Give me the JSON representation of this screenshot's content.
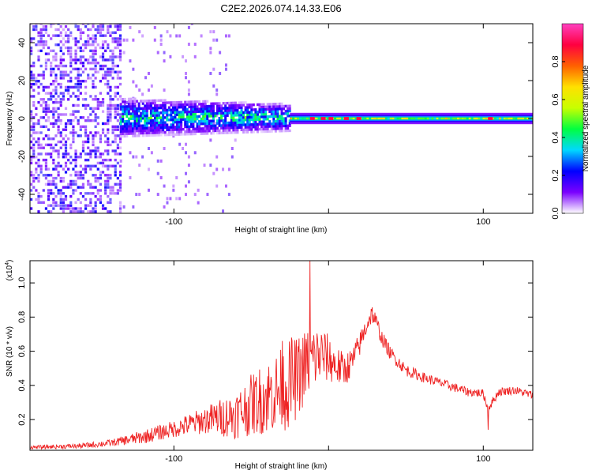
{
  "title": "C2E2.2026.074.14.33.E06",
  "chart_data": [
    {
      "type": "heatmap",
      "name": "spectrogram",
      "xlabel": "Height of straight line (km)",
      "ylabel": "Frequency (Hz)",
      "xlim": [
        -193,
        132
      ],
      "ylim": [
        -50,
        50
      ],
      "x_ticks": [
        -100,
        0,
        100
      ],
      "x_tick_labels": [
        "-100",
        "",
        "100"
      ],
      "y_ticks": [
        -40,
        -20,
        0,
        20,
        40
      ],
      "y_tick_labels": [
        "-40",
        "-20",
        "0",
        "20",
        "40"
      ],
      "colorbar": {
        "label": "Normalized spectral amplitude",
        "range": [
          0,
          1
        ],
        "ticks": [
          0.0,
          0.2,
          0.4,
          0.6,
          0.8
        ],
        "tick_labels": [
          "0.0",
          "0.2",
          "0.4",
          "0.6",
          "0.8"
        ],
        "colors": [
          "#ffffff",
          "#7a00ff",
          "#0000ff",
          "#00d8ff",
          "#00ff40",
          "#c8ff00",
          "#ffe000",
          "#ff6000",
          "#ff0040",
          "#ff40c0"
        ]
      },
      "regions": [
        {
          "x_range": [
            -193,
            -135
          ],
          "description_level": 0.15,
          "band_hz": [
            -50,
            50
          ]
        },
        {
          "x_range": [
            -135,
            -25
          ],
          "description_level": 0.35,
          "band_hz": [
            -10,
            10
          ]
        },
        {
          "x_range": [
            -25,
            132
          ],
          "description_level": 0.55,
          "band_hz": [
            -3,
            3
          ]
        }
      ]
    },
    {
      "type": "line",
      "name": "snr",
      "xlabel": "Height of straight line (km)",
      "ylabel": "SNR (10 * v/v)",
      "y_scale_label": "(x10",
      "y_scale_exp": "4",
      "xlim": [
        -193,
        132
      ],
      "ylim": [
        0.02,
        1.13
      ],
      "x_ticks": [
        -100,
        0,
        100
      ],
      "x_tick_labels": [
        "-100",
        "",
        "100"
      ],
      "y_ticks": [
        0.2,
        0.4,
        0.6,
        0.8,
        1.0
      ],
      "y_tick_labels": [
        "0.2",
        "0.4",
        "0.6",
        "0.8",
        "1.0"
      ],
      "color": "#ee2222",
      "envelope": {
        "x": [
          -193,
          -160,
          -140,
          -120,
          -100,
          -80,
          -60,
          -50,
          -40,
          -30,
          -20,
          -15,
          -10,
          -5,
          0,
          5,
          10,
          15,
          20,
          25,
          28,
          30,
          35,
          40,
          50,
          60,
          70,
          80,
          90,
          100,
          103,
          110,
          120,
          132
        ],
        "y": [
          0.04,
          0.05,
          0.07,
          0.11,
          0.16,
          0.22,
          0.27,
          0.34,
          0.4,
          0.45,
          0.52,
          0.58,
          0.62,
          0.63,
          0.6,
          0.55,
          0.52,
          0.56,
          0.66,
          0.78,
          0.84,
          0.8,
          0.68,
          0.6,
          0.5,
          0.46,
          0.43,
          0.4,
          0.37,
          0.36,
          0.27,
          0.37,
          0.38,
          0.35
        ]
      },
      "noise": {
        "x": [
          -193,
          -160,
          -140,
          -120,
          -100,
          -80,
          -60,
          -40,
          -25,
          -10,
          0,
          10,
          25,
          40,
          60,
          100,
          132
        ],
        "amplitude": [
          0.01,
          0.015,
          0.02,
          0.04,
          0.05,
          0.08,
          0.14,
          0.22,
          0.26,
          0.2,
          0.14,
          0.1,
          0.06,
          0.04,
          0.03,
          0.025,
          0.025
        ]
      },
      "peaks": [
        {
          "x": -12,
          "y": 1.13
        },
        {
          "x": -24,
          "y": 0.68
        },
        {
          "x": -30,
          "y": 0.66
        },
        {
          "x": 103,
          "y": 0.14
        }
      ]
    }
  ]
}
